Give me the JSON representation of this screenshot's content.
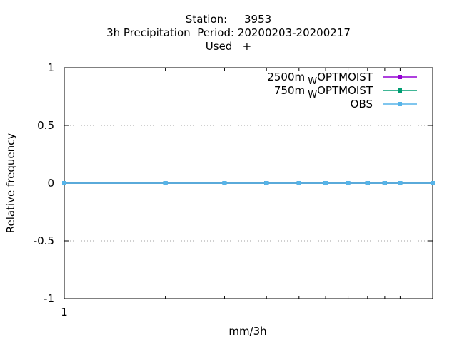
{
  "title_lines": [
    "Station:     3953",
    "3h Precipitation  Period: 20200203-20200217",
    "Used   +"
  ],
  "chart_data": {
    "type": "line",
    "xlabel": "mm/3h",
    "ylabel": "Relative frequency",
    "x_scale": "log",
    "xlim": [
      1,
      12.5
    ],
    "ylim": [
      -1,
      1
    ],
    "yticks": [
      1,
      0.5,
      0,
      -0.5,
      -1
    ],
    "ytick_labels": [
      "1",
      "0.5",
      "0",
      "-0.5",
      "-1"
    ],
    "xtick_labels": [
      {
        "value": 1,
        "label": "1"
      }
    ],
    "x_minor_ticks": [
      2,
      3,
      4,
      5,
      6,
      7,
      8,
      9,
      10
    ],
    "grid": "horizontal-dotted",
    "legend_position": "top-right",
    "series": [
      {
        "name": "2500m",
        "name_sub": "W",
        "name_suffix": "OPTMOIST",
        "color": "#9400d3",
        "x": [
          1,
          2,
          3,
          4,
          5,
          6,
          7,
          8,
          9,
          10,
          12.5
        ],
        "y": [
          0,
          0,
          0,
          0,
          0,
          0,
          0,
          0,
          0,
          0,
          0
        ]
      },
      {
        "name": "750m",
        "name_sub": "W",
        "name_suffix": "OPTMOIST",
        "color": "#009e73",
        "x": [
          1,
          2,
          3,
          4,
          5,
          6,
          7,
          8,
          9,
          10,
          12.5
        ],
        "y": [
          0,
          0,
          0,
          0,
          0,
          0,
          0,
          0,
          0,
          0,
          0
        ]
      },
      {
        "name": "OBS",
        "color": "#56b4e9",
        "x": [
          1,
          2,
          3,
          4,
          5,
          6,
          7,
          8,
          9,
          10,
          12.5
        ],
        "y": [
          0,
          0,
          0,
          0,
          0,
          0,
          0,
          0,
          0,
          0,
          0
        ]
      }
    ]
  }
}
